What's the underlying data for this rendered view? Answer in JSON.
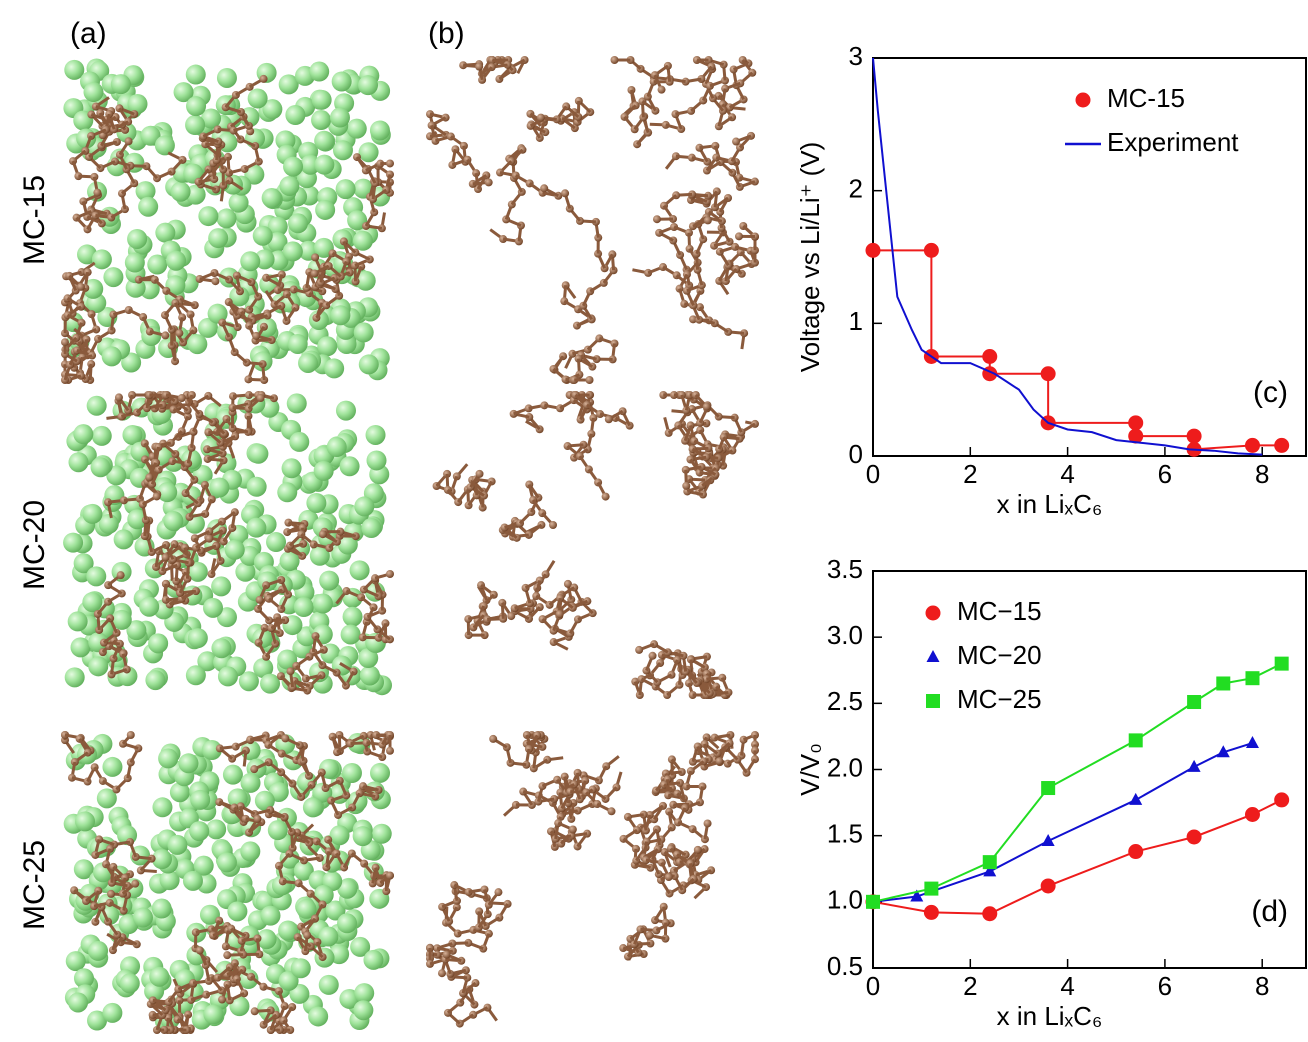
{
  "panel_labels": {
    "a": "(a)",
    "b": "(b)"
  },
  "row_labels": [
    "MC-15",
    "MC-20",
    "MC-25"
  ],
  "chart_data": [
    {
      "type": "line",
      "panel_label": "(c)",
      "x_label": "x in LiₓC₆",
      "y_label": "Voltage vs Li/Li⁺ (V)",
      "xlim": [
        0,
        8.9
      ],
      "ylim": [
        0,
        3
      ],
      "xticks": [
        0,
        2,
        4,
        6,
        8
      ],
      "yticks": [
        0,
        1,
        2,
        3
      ],
      "legend": "upper right",
      "series": [
        {
          "name": "MC-15",
          "color": "#ee1c1c",
          "marker": "circle",
          "line": true,
          "x": [
            0,
            1.2,
            1.2,
            2.4,
            2.4,
            3.6,
            3.6,
            5.4,
            5.4,
            6.6,
            6.6,
            7.8,
            8.4
          ],
          "values": [
            1.55,
            1.55,
            0.75,
            0.75,
            0.62,
            0.62,
            0.25,
            0.25,
            0.15,
            0.15,
            0.05,
            0.08,
            0.08
          ]
        },
        {
          "name": "Experiment",
          "color": "#1010d0",
          "marker": "none",
          "line": true,
          "x": [
            0,
            0.1,
            0.3,
            0.5,
            0.8,
            1.0,
            1.4,
            2.0,
            2.5,
            3.0,
            3.3,
            3.6,
            4.0,
            4.5,
            5.0,
            5.5,
            6.0,
            6.5,
            7.0,
            7.5,
            8.0
          ],
          "values": [
            3.0,
            2.6,
            1.9,
            1.2,
            0.95,
            0.8,
            0.7,
            0.7,
            0.62,
            0.5,
            0.35,
            0.25,
            0.2,
            0.18,
            0.12,
            0.1,
            0.08,
            0.05,
            0.04,
            0.02,
            0.01
          ]
        }
      ]
    },
    {
      "type": "line",
      "panel_label": "(d)",
      "x_label": "x in LiₓC₆",
      "y_label": "V/V₀",
      "xlim": [
        0,
        8.9
      ],
      "ylim": [
        0.5,
        3.5
      ],
      "xticks": [
        0,
        2,
        4,
        6,
        8
      ],
      "yticks": [
        0.5,
        {
          "value": 1,
          "label": "1.0"
        },
        1.5,
        {
          "value": 2,
          "label": "2.0"
        },
        2.5,
        {
          "value": 3,
          "label": "3.0"
        },
        3.5
      ],
      "legend": "upper left",
      "series": [
        {
          "name": "MC−15",
          "color": "#ee1c1c",
          "marker": "circle",
          "line": true,
          "x": [
            0,
            1.2,
            2.4,
            3.6,
            5.4,
            6.6,
            7.8,
            8.4
          ],
          "values": [
            1.0,
            0.92,
            0.91,
            1.12,
            1.38,
            1.49,
            1.66,
            1.77
          ]
        },
        {
          "name": "MC−20",
          "color": "#1010d0",
          "marker": "triangle",
          "line": true,
          "x": [
            0,
            0.9,
            2.4,
            3.6,
            5.4,
            6.6,
            7.2,
            7.8
          ],
          "values": [
            1.0,
            1.04,
            1.23,
            1.46,
            1.77,
            2.02,
            2.13,
            2.2
          ]
        },
        {
          "name": "MC−25",
          "color": "#22dd22",
          "marker": "square",
          "line": true,
          "x": [
            0,
            1.2,
            2.4,
            3.6,
            5.4,
            6.6,
            7.2,
            7.8,
            8.4
          ],
          "values": [
            1.0,
            1.1,
            1.3,
            1.86,
            2.22,
            2.51,
            2.65,
            2.69,
            2.8
          ]
        }
      ]
    }
  ]
}
